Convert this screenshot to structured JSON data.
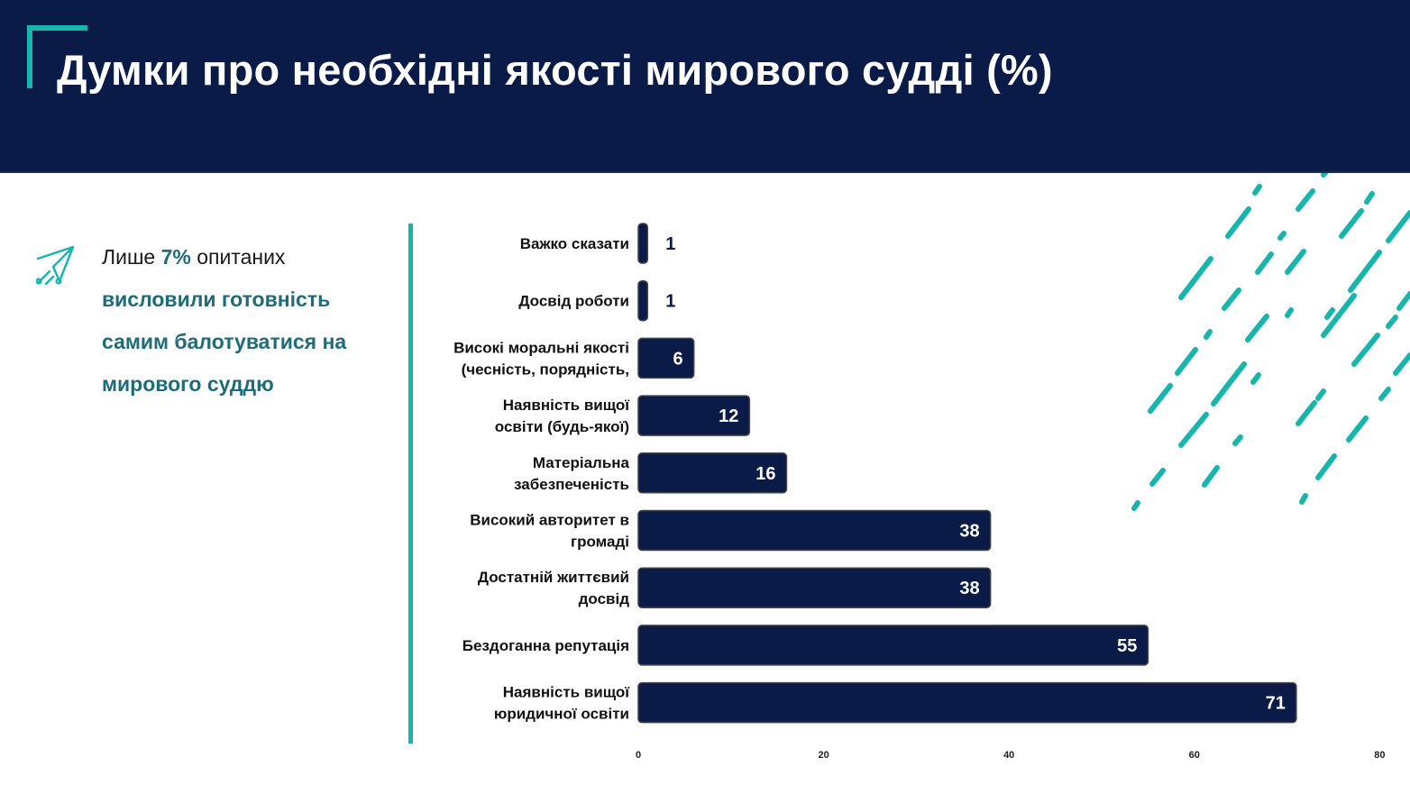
{
  "header": {
    "title": "Думки про необхідні якості мирового судді (%)"
  },
  "sidebar": {
    "icon": "paper-plane-icon",
    "text_prefix": "Лише ",
    "text_percent": "7%",
    "text_after": " опитаних",
    "text_bold": "висловили готовність самим балотуватися на мирового суддю"
  },
  "colors": {
    "header_bg": "#0b1b48",
    "accent": "#18b5ad",
    "bar": "#0b1b48",
    "highlight_text": "#1e6c78"
  },
  "chart_data": {
    "type": "bar",
    "orientation": "horizontal",
    "categories": [
      [
        "Важко сказати"
      ],
      [
        "Досвід роботи"
      ],
      [
        "Високі моральні якості",
        "(чесність, порядність,"
      ],
      [
        "Наявність вищої",
        "освіти (будь-якої)"
      ],
      [
        "Матеріальна",
        "забезпеченість"
      ],
      [
        "Високий авторитет в",
        "громаді"
      ],
      [
        "Достатній життєвий",
        "досвід"
      ],
      [
        "Бездоганна репутація"
      ],
      [
        "Наявність вищої",
        "юридичної освіти"
      ]
    ],
    "values": [
      1,
      1,
      6,
      12,
      16,
      38,
      38,
      55,
      71
    ],
    "value_labels": [
      "1",
      "1",
      "6",
      "12",
      "16",
      "38",
      "38",
      "55",
      "71"
    ],
    "xlim": [
      0,
      80
    ],
    "xticks": [
      "0",
      "20",
      "40",
      "60",
      "80"
    ],
    "xtick_values": [
      0,
      20,
      40,
      60,
      80
    ],
    "grid": false,
    "legend": "none"
  }
}
